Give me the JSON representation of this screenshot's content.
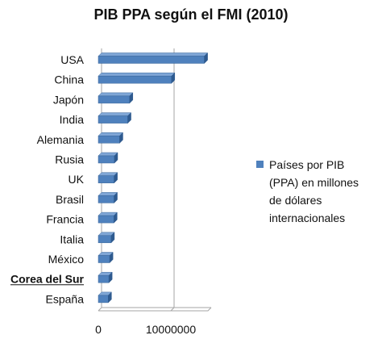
{
  "chart_data": {
    "type": "bar",
    "orientation": "horizontal",
    "style": "3d",
    "title": "PIB PPA según el FMI (2010)",
    "categories": [
      "USA",
      "China",
      "Japón",
      "India",
      "Alemania",
      "Rusia",
      "UK",
      "Brasil",
      "Francia",
      "Italia",
      "México",
      "Corea del Sur",
      "España"
    ],
    "highlighted_category": "Corea del Sur",
    "series": [
      {
        "name": "Países por PIB (PPA) en millones de dólares internacionales",
        "color": "#4f81bd",
        "values": [
          14620000,
          10090000,
          4310000,
          4060000,
          2940000,
          2220000,
          2180000,
          2170000,
          2150000,
          1770000,
          1570000,
          1460000,
          1370000
        ]
      }
    ],
    "xlim": [
      0,
      15000000
    ],
    "xticks": [
      "0",
      "10000000"
    ],
    "xlabel": "",
    "ylabel": "",
    "grid": true,
    "legend_position": "right"
  }
}
